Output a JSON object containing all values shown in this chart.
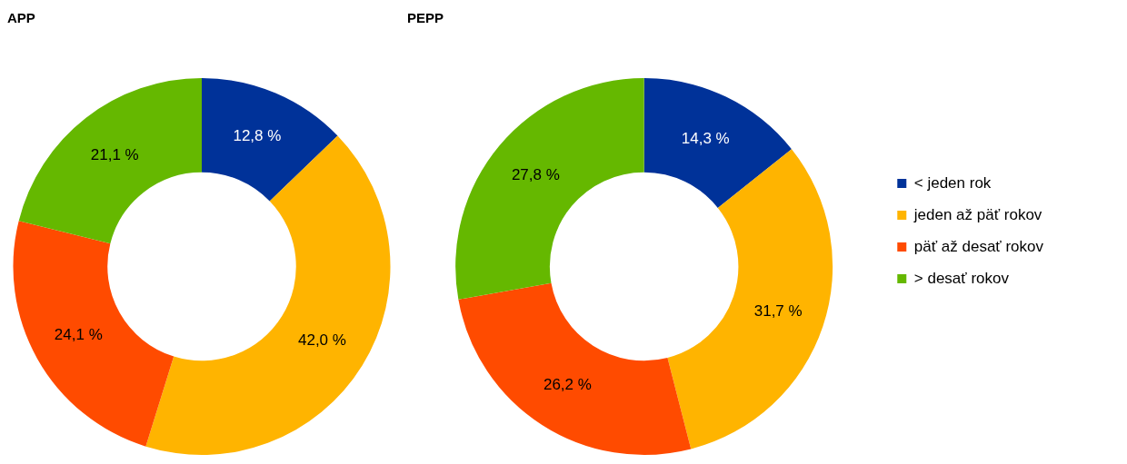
{
  "chart_data": [
    {
      "type": "donut",
      "title": "APP",
      "categories": [
        null,
        null,
        null,
        null
      ],
      "values": [
        12.8,
        42.0,
        24.1,
        21.1
      ],
      "colors": [
        "#003299",
        "#ffb400",
        "#ff4b00",
        "#65b800"
      ],
      "value_labels": [
        "12,8 %",
        "42,0 %",
        "24,1 %",
        "21,1 %"
      ],
      "legend": false
    },
    {
      "type": "donut",
      "title": "PEPP",
      "categories": [
        "< jeden rok",
        "jeden až päť rokov",
        "päť až desať rokov",
        "> desať rokov"
      ],
      "values": [
        14.3,
        31.7,
        26.2,
        27.8
      ],
      "colors": [
        "#003299",
        "#ffb400",
        "#ff4b00",
        "#65b800"
      ],
      "value_labels": [
        "14,3 %",
        "31,7 %",
        "26,2 %",
        "27,8 %"
      ],
      "legend": "right"
    }
  ]
}
